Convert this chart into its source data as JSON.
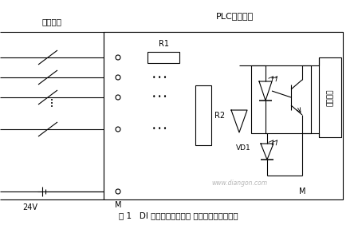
{
  "title": "图 1   DI 模块直流输入电路 源型灌电流输入电路",
  "watermark": "www.diangon.com",
  "bg_color": "#ffffff",
  "color": "#000000",
  "fig_width": 4.49,
  "fig_height": 2.82,
  "dpi": 100,
  "label_waibujie": "外部接线",
  "label_plc": "PLC内部接线",
  "label_24v": "24V",
  "label_M": "M",
  "label_R1": "R1",
  "label_R2": "R2",
  "label_VD1": "VD1",
  "label_M_right": "M",
  "label_zhi": "至处理器"
}
